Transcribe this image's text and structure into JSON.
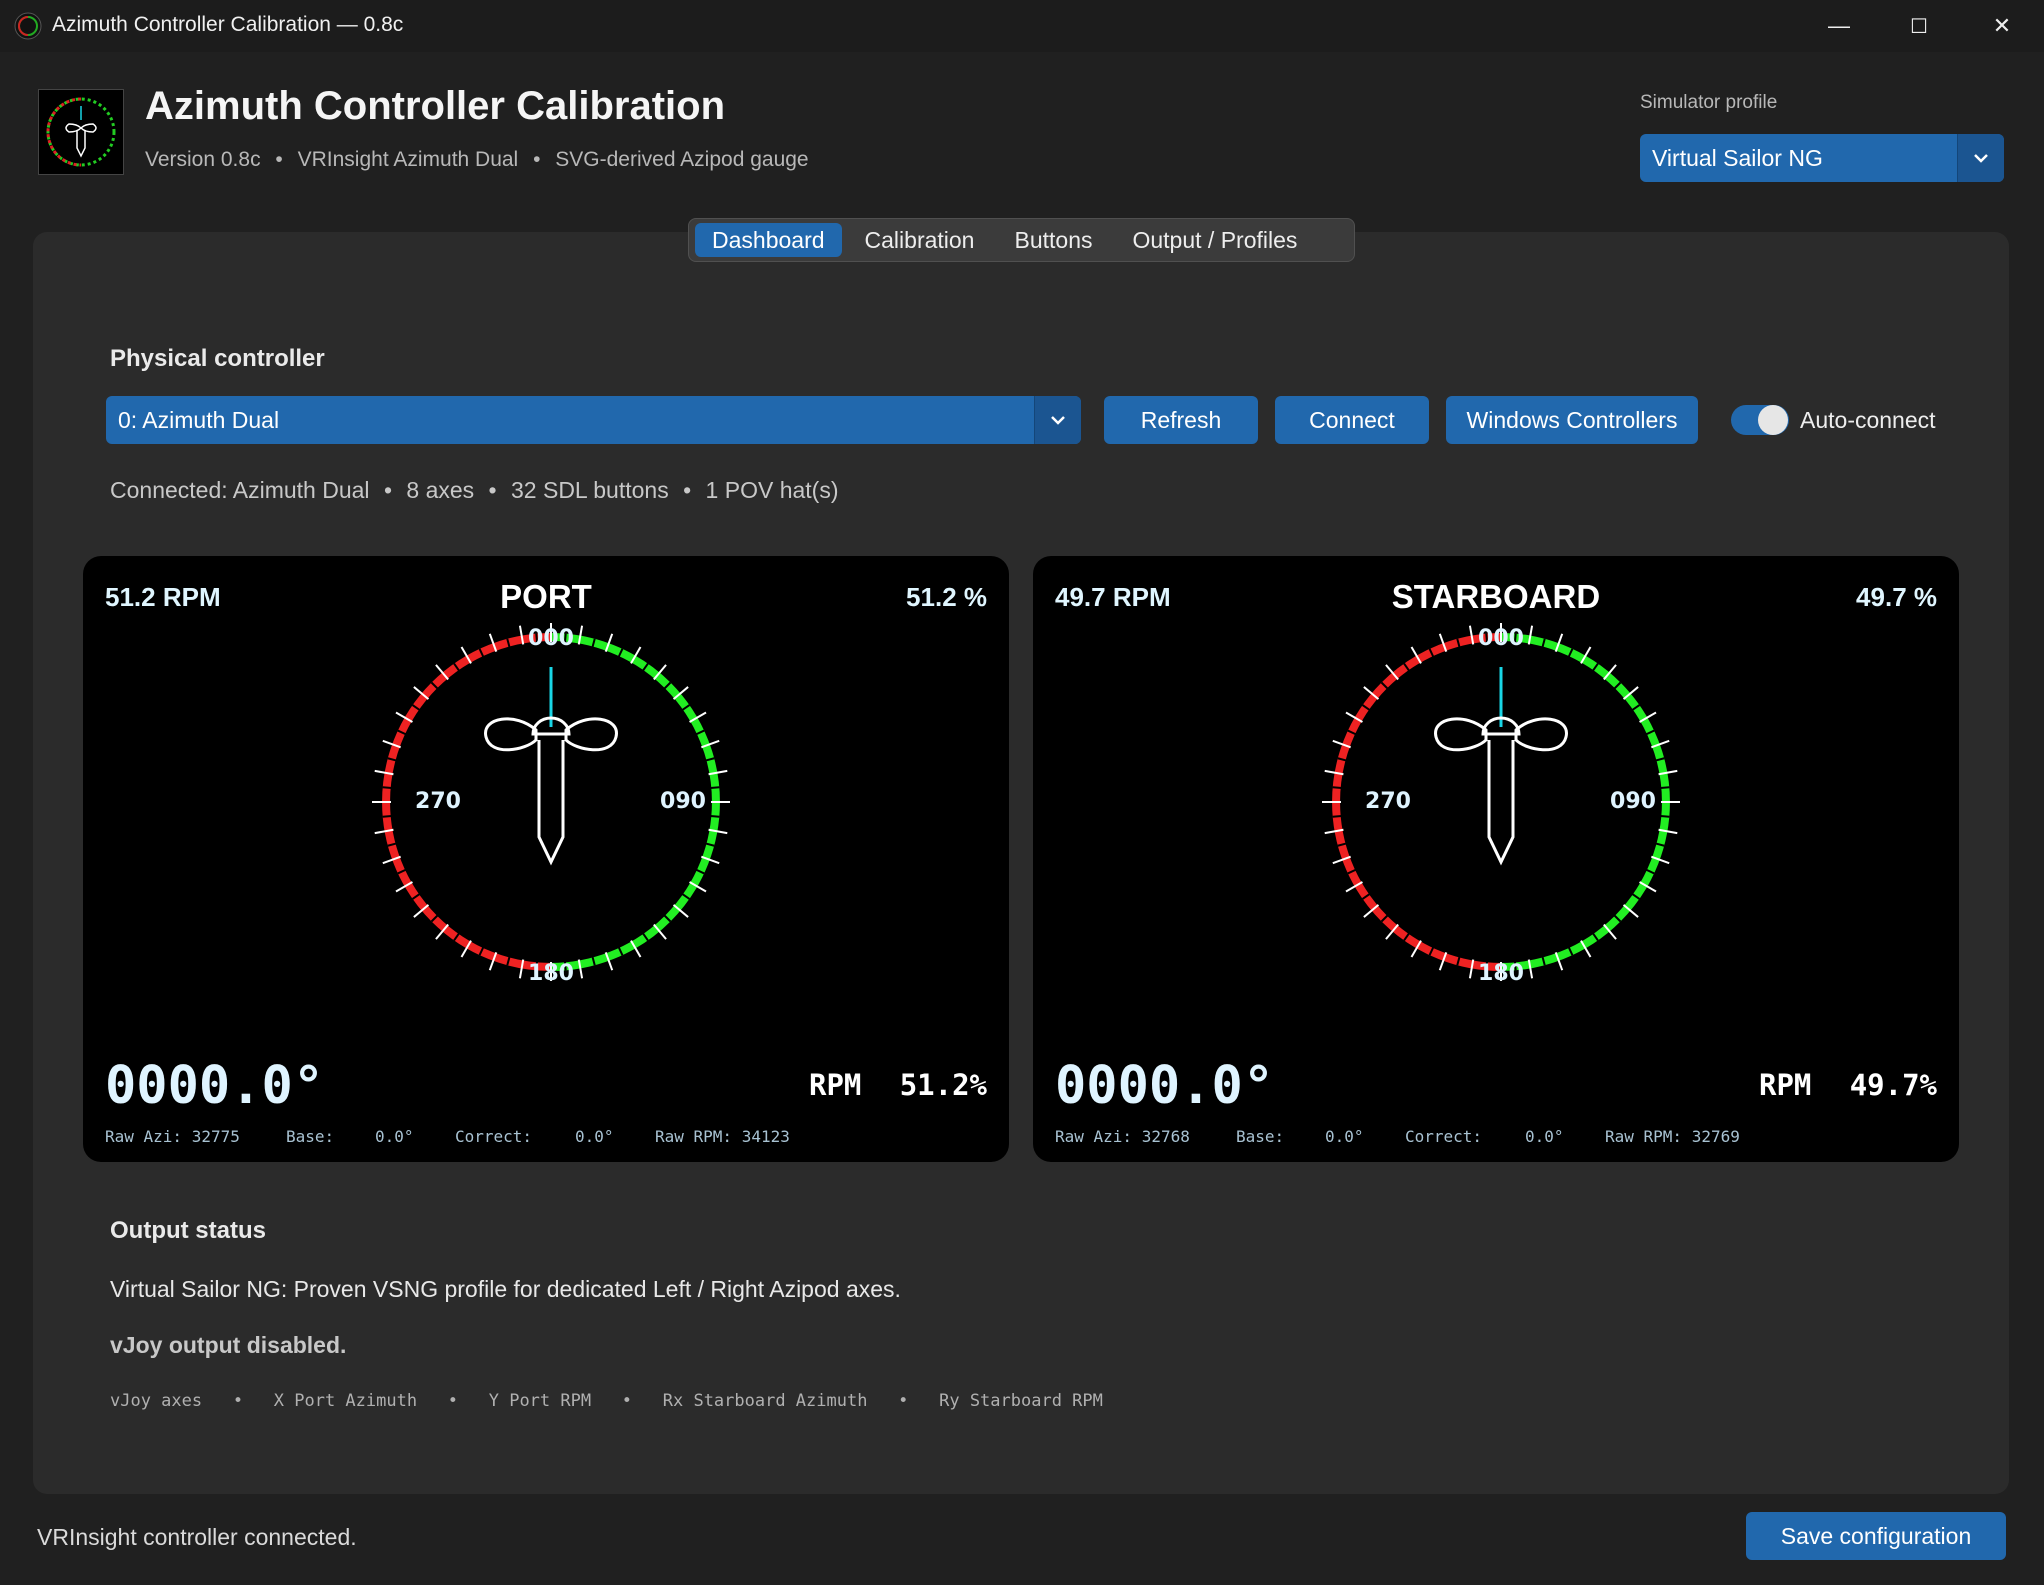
{
  "window": {
    "title": "Azimuth Controller Calibration — 0.8c",
    "minimize": "—",
    "maximize": "☐",
    "close": "✕"
  },
  "header": {
    "title": "Azimuth Controller Calibration",
    "subtitle_parts": [
      "Version 0.8c",
      "VRInsight Azimuth Dual",
      "SVG-derived Azipod gauge"
    ],
    "separator": "•",
    "sim_profile_label": "Simulator profile",
    "sim_profile_value": "Virtual Sailor NG"
  },
  "tabs": [
    {
      "label": "Dashboard",
      "active": true
    },
    {
      "label": "Calibration",
      "active": false
    },
    {
      "label": "Buttons",
      "active": false
    },
    {
      "label": "Output / Profiles",
      "active": false
    }
  ],
  "controller": {
    "section_title": "Physical controller",
    "selected": "0: Azimuth Dual",
    "refresh_label": "Refresh",
    "connect_label": "Connect",
    "windows_controllers_label": "Windows Controllers",
    "auto_connect_label": "Auto-connect",
    "auto_connect_on": true,
    "status_parts": [
      "Connected: Azimuth Dual",
      "8 axes",
      "32 SDL buttons",
      "1 POV hat(s)"
    ]
  },
  "gauges": [
    {
      "name": "PORT",
      "rpm_text": "51.2 RPM",
      "pct_text": "51.2 %",
      "angle": "0000.0°",
      "rpm_label": "RPM",
      "rpm_value": "51.2%",
      "raw_azi": "Raw Azi: 32775",
      "base_label": "Base:",
      "base_value": "0.0°",
      "correct_label": "Correct:",
      "correct_value": "0.0°",
      "raw_rpm": "Raw RPM: 34123",
      "heading_deg": 0,
      "compass_labels": {
        "n": "000",
        "e": "090",
        "s": "180",
        "w": "270"
      }
    },
    {
      "name": "STARBOARD",
      "rpm_text": "49.7 RPM",
      "pct_text": "49.7 %",
      "angle": "0000.0°",
      "rpm_label": "RPM",
      "rpm_value": "49.7%",
      "raw_azi": "Raw Azi: 32768",
      "base_label": "Base:",
      "base_value": "0.0°",
      "correct_label": "Correct:",
      "correct_value": "0.0°",
      "raw_rpm": "Raw RPM: 32769",
      "heading_deg": 0,
      "compass_labels": {
        "n": "000",
        "e": "090",
        "s": "180",
        "w": "270"
      }
    }
  ],
  "output": {
    "section_title": "Output status",
    "description": "Virtual Sailor NG: Proven VSNG profile for dedicated Left / Right Azipod axes.",
    "vjoy_status": "vJoy output disabled.",
    "axes_parts": [
      "vJoy axes",
      "X Port Azimuth",
      "Y Port RPM",
      "Rx Starboard Azimuth",
      "Ry Starboard RPM"
    ]
  },
  "footer": {
    "status": "VRInsight controller connected.",
    "save_label": "Save configuration"
  },
  "colors": {
    "accent": "#2168ad",
    "gauge_green": "#22ee22",
    "gauge_red": "#ee2222",
    "needle": "#19d6e6"
  }
}
